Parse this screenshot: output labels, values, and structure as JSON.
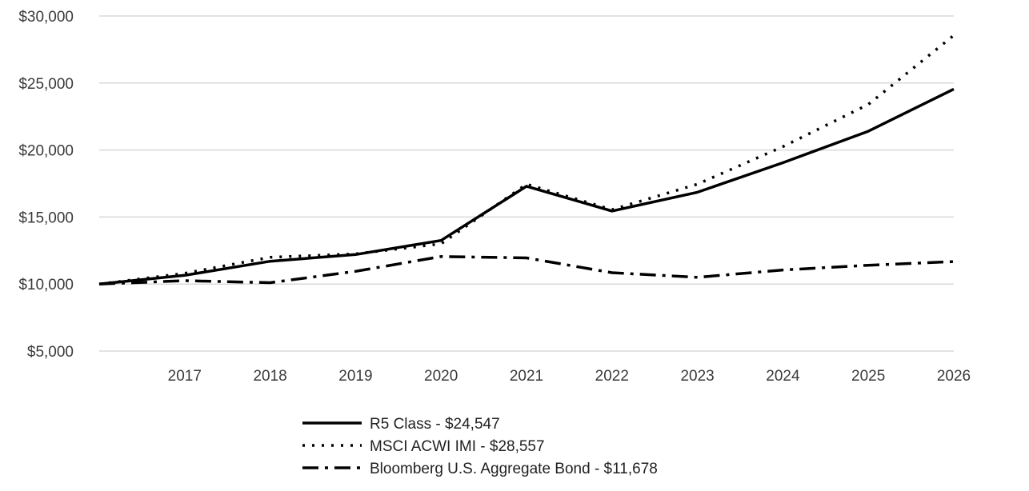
{
  "chart_data": {
    "type": "line",
    "title": "",
    "xlabel": "",
    "ylabel": "",
    "x": [
      "2016",
      "2017",
      "2018",
      "2019",
      "2020",
      "2021",
      "2022",
      "2023",
      "2024",
      "2025",
      "2026"
    ],
    "x_tick_labels": [
      "2017",
      "2018",
      "2019",
      "2020",
      "2021",
      "2022",
      "2023",
      "2024",
      "2025",
      "2026"
    ],
    "ylim": [
      5000,
      30000
    ],
    "y_ticks": [
      5000,
      10000,
      15000,
      20000,
      25000,
      30000
    ],
    "y_tick_labels": [
      "$5,000",
      "$10,000",
      "$15,000",
      "$20,000",
      "$25,000",
      "$30,000"
    ],
    "grid": "horizontal",
    "legend_position": "bottom",
    "series": [
      {
        "name": "R5 Class - $24,547",
        "style": "solid",
        "values": [
          10000,
          10650,
          11700,
          12200,
          13250,
          17300,
          15450,
          16850,
          19050,
          21400,
          24547
        ]
      },
      {
        "name": "MSCI ACWI IMI - $28,557",
        "style": "dotted",
        "values": [
          10000,
          10800,
          12000,
          12250,
          13000,
          17450,
          15550,
          17450,
          20250,
          23400,
          28557
        ]
      },
      {
        "name": "Bloomberg U.S. Aggregate Bond - $11,678",
        "style": "dash-dot",
        "values": [
          10000,
          10250,
          10100,
          10950,
          12050,
          11950,
          10850,
          10500,
          11050,
          11400,
          11678
        ]
      }
    ]
  }
}
